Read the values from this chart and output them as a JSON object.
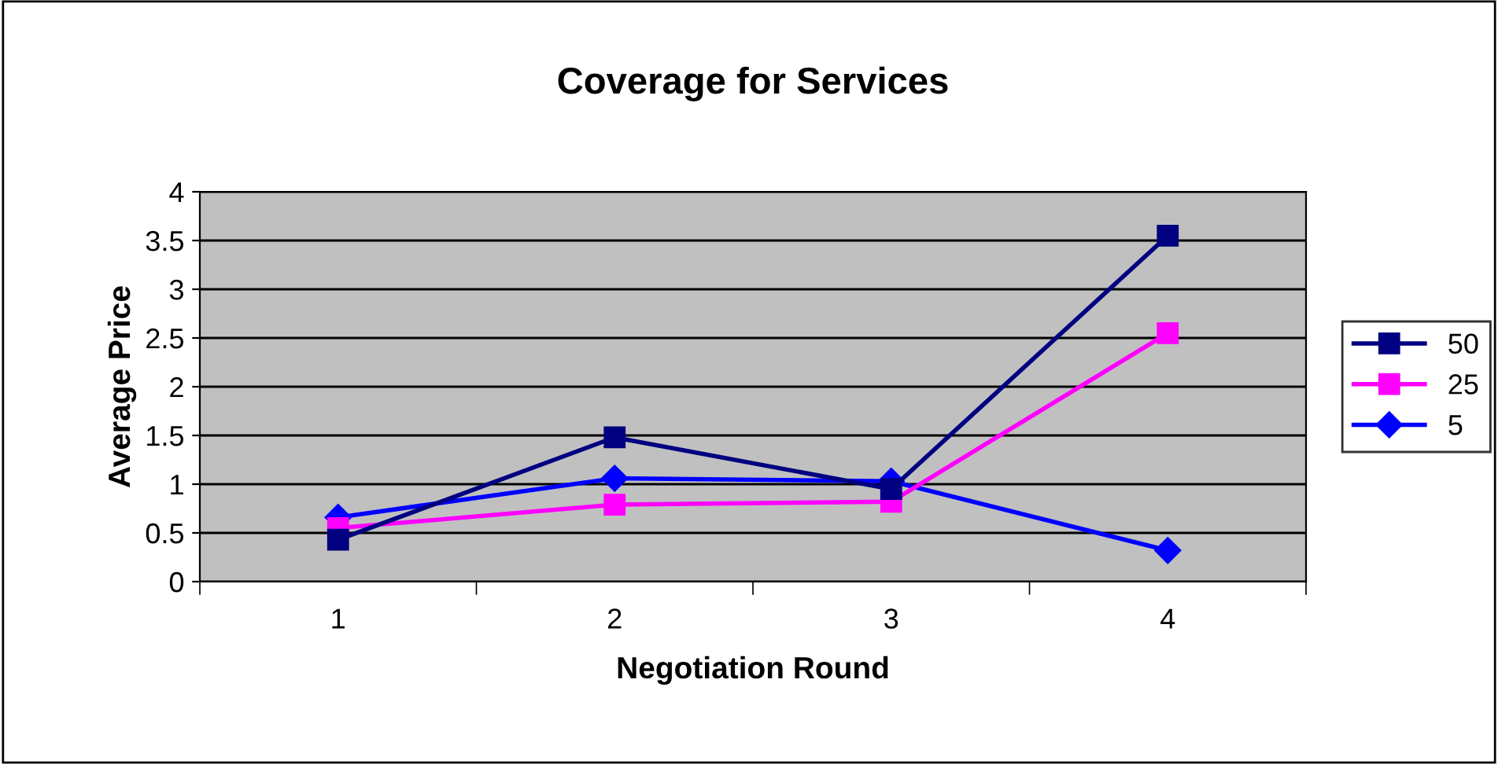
{
  "chart_data": {
    "type": "line",
    "title": "Coverage for Services",
    "xlabel": "Negotiation Round",
    "ylabel": "Average Price",
    "categories": [
      "1",
      "2",
      "3",
      "4"
    ],
    "series": [
      {
        "name": "50",
        "color": "#000080",
        "marker": "square",
        "values": [
          0.43,
          1.48,
          0.95,
          3.55
        ]
      },
      {
        "name": "25",
        "color": "#ff00ff",
        "marker": "square",
        "values": [
          0.55,
          0.79,
          0.82,
          2.55
        ]
      },
      {
        "name": "5",
        "color": "#0000ff",
        "marker": "diamond",
        "values": [
          0.66,
          1.06,
          1.03,
          0.32
        ]
      }
    ],
    "ylim": [
      0,
      4
    ],
    "yticks": [
      0,
      0.5,
      1,
      1.5,
      2,
      2.5,
      3,
      3.5,
      4
    ],
    "grid": "y",
    "legend": "right",
    "line_style": "solid"
  }
}
